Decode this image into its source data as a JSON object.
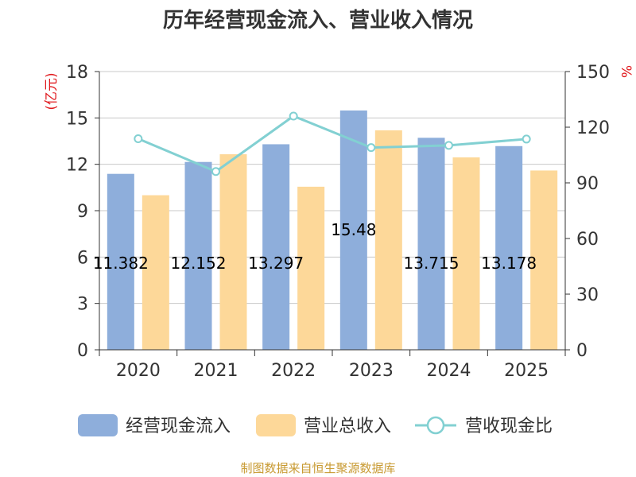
{
  "chart_data": {
    "type": "bar",
    "title": "历年经营现金流入、营业收入情况",
    "categories": [
      "2020",
      "2021",
      "2022",
      "2023",
      "2024",
      "2025"
    ],
    "series": [
      {
        "name": "经营现金流入",
        "kind": "bar",
        "axis": "left",
        "color": "#8eaedb",
        "values": [
          11.382,
          12.152,
          13.297,
          15.48,
          13.715,
          13.178
        ],
        "labels": [
          "11.382",
          "12.152",
          "13.297",
          "15.48",
          "13.715",
          "13.178"
        ]
      },
      {
        "name": "营业总收入",
        "kind": "bar",
        "axis": "left",
        "color": "#fdd899",
        "values": [
          10.0,
          12.65,
          10.55,
          14.2,
          12.45,
          11.6
        ]
      },
      {
        "name": "营收现金比",
        "kind": "line",
        "axis": "right",
        "color": "#82d0d2",
        "values": [
          113.8,
          96.1,
          126.0,
          109.0,
          110.2,
          113.6
        ]
      }
    ],
    "y_left": {
      "unit": "(亿元)",
      "ylim": [
        0,
        18
      ],
      "ticks": [
        "0",
        "3",
        "6",
        "9",
        "12",
        "15",
        "18"
      ]
    },
    "y_right": {
      "unit": "%",
      "ylim": [
        0,
        150
      ],
      "ticks": [
        "0",
        "30",
        "60",
        "90",
        "120",
        "150"
      ]
    },
    "grid": true,
    "legend_position": "bottom",
    "source": "制图数据来自恒生聚源数据库"
  }
}
